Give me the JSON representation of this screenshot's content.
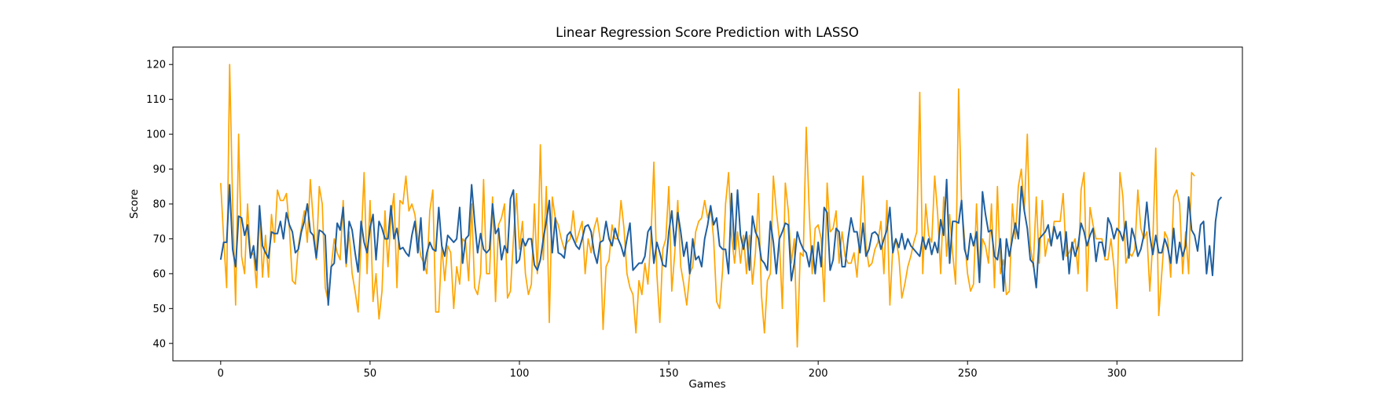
{
  "chart_data": {
    "type": "line",
    "title": "Linear Regression Score Prediction with LASSO",
    "xlabel": "Games",
    "ylabel": "Score",
    "xlim": [
      -16,
      342
    ],
    "ylim": [
      35,
      125
    ],
    "xticks": [
      0,
      50,
      100,
      150,
      200,
      250,
      300
    ],
    "yticks": [
      40,
      50,
      60,
      70,
      80,
      90,
      100,
      110,
      120
    ],
    "grid": false,
    "legend": "none",
    "series": [
      {
        "color": "#ffa500",
        "values": [
          86,
          70,
          56,
          120,
          80,
          51,
          100,
          65,
          60,
          80,
          65,
          66,
          56,
          78,
          59,
          71,
          59,
          77,
          69,
          84,
          81,
          81,
          83,
          73,
          58,
          57,
          68,
          73,
          78,
          69,
          87,
          75,
          64,
          85,
          80,
          56,
          52,
          62,
          70,
          66,
          64,
          81,
          62,
          72,
          60,
          55,
          49,
          69,
          89,
          60,
          81,
          52,
          60,
          47,
          55,
          78,
          62,
          76,
          83,
          56,
          81,
          80,
          88,
          78,
          80,
          77,
          70,
          65,
          63,
          60,
          78,
          84,
          49,
          49,
          68,
          58,
          68,
          66,
          50,
          62,
          57,
          70,
          69,
          58,
          80,
          56,
          54,
          60,
          87,
          60,
          60,
          82,
          52,
          74,
          76,
          80,
          53,
          55,
          70,
          83,
          67,
          75,
          60,
          54,
          57,
          80,
          60,
          97,
          64,
          85,
          46,
          82,
          76,
          74,
          70,
          67,
          69,
          70,
          78,
          69,
          72,
          75,
          60,
          70,
          66,
          73,
          76,
          70,
          44,
          62,
          64,
          74,
          70,
          70,
          81,
          73,
          60,
          56,
          54,
          43,
          58,
          54,
          63,
          57,
          70,
          92,
          60,
          46,
          67,
          70,
          85,
          55,
          66,
          81,
          62,
          57,
          51,
          60,
          62,
          72,
          75,
          76,
          81,
          76,
          79,
          70,
          52,
          50,
          61,
          80,
          89,
          71,
          63,
          72,
          63,
          71,
          60,
          71,
          57,
          66,
          83,
          54,
          43,
          58,
          60,
          88,
          78,
          70,
          50,
          86,
          78,
          63,
          70,
          39,
          66,
          65,
          102,
          78,
          60,
          73,
          74,
          70,
          52,
          86,
          72,
          73,
          78,
          63,
          72,
          65,
          63,
          63,
          66,
          59,
          72,
          88,
          68,
          62,
          63,
          67,
          69,
          75,
          60,
          81,
          51,
          68,
          70,
          65,
          53,
          57,
          62,
          65,
          69,
          72,
          112,
          60,
          80,
          71,
          69,
          88,
          77,
          60,
          82,
          65,
          77,
          66,
          57,
          113,
          80,
          70,
          60,
          55,
          57,
          80,
          58,
          70,
          68,
          63,
          80,
          56,
          85,
          60,
          64,
          54,
          55,
          80,
          70,
          85,
          90,
          78,
          100,
          68,
          62,
          82,
          63,
          81,
          65,
          70,
          68,
          75,
          75,
          75,
          83,
          65,
          66,
          68,
          70,
          60,
          84,
          89,
          55,
          79,
          74,
          70,
          70,
          70,
          64,
          64,
          70,
          62,
          50,
          89,
          82,
          63,
          66,
          65,
          67,
          84,
          73,
          70,
          72,
          55,
          69,
          96,
          48,
          60,
          72,
          70,
          59,
          82,
          84,
          80,
          60,
          72,
          60,
          89,
          88
        ]
      },
      {
        "color": "#1f5fa0",
        "values": [
          64,
          69,
          69,
          85.5,
          67,
          62,
          76.5,
          76,
          71,
          74,
          64.5,
          68,
          61,
          79.5,
          68,
          66,
          64.5,
          72,
          71.5,
          71.5,
          75,
          70,
          77.5,
          74,
          72,
          66,
          67,
          72,
          75,
          80,
          72,
          71,
          64.5,
          72.5,
          72,
          71,
          51,
          62,
          63,
          74.5,
          72.5,
          79,
          63,
          75,
          72.5,
          66,
          60.5,
          75,
          69,
          66,
          73,
          77,
          64,
          75,
          73,
          70,
          70,
          79.5,
          70,
          73,
          67,
          67.5,
          66,
          65,
          71,
          75,
          66,
          76,
          61,
          66,
          69,
          67,
          66.5,
          79,
          68,
          65,
          71,
          70,
          69,
          70,
          79,
          63,
          70,
          71,
          85.5,
          75,
          66,
          71.5,
          67,
          66,
          67,
          80,
          71.5,
          73,
          64,
          68,
          66,
          81.5,
          84,
          63,
          64,
          70,
          68,
          70,
          70,
          62.5,
          61,
          64,
          70,
          75,
          81,
          66,
          76,
          66,
          65.5,
          64.5,
          71,
          72,
          70,
          68,
          67,
          70,
          73.5,
          74,
          72,
          66,
          63,
          69,
          69.5,
          75,
          70,
          68,
          73,
          70,
          68,
          65,
          70,
          74.5,
          61,
          62,
          63,
          63,
          65,
          72,
          73.5,
          63,
          69,
          66,
          62.5,
          62,
          72,
          78,
          68,
          77.5,
          72,
          65,
          69,
          60,
          70,
          64,
          65,
          62,
          70,
          74,
          79.5,
          74,
          76,
          68,
          67,
          67,
          60,
          83,
          67,
          84,
          71,
          67,
          72,
          61,
          76.5,
          72,
          70,
          64,
          63,
          61,
          75,
          69,
          60,
          70,
          72,
          74.5,
          74,
          58,
          63,
          72,
          69,
          67,
          66,
          62,
          68,
          60,
          69,
          62,
          79,
          77.5,
          61,
          64,
          73,
          72,
          62,
          62,
          70,
          76,
          72,
          72,
          66,
          74.5,
          65,
          67,
          71.5,
          72,
          71,
          67,
          70,
          72.5,
          79,
          66,
          70,
          67.5,
          71.5,
          67,
          70,
          68,
          67,
          66,
          65,
          70.5,
          67,
          70,
          65.5,
          69,
          66,
          75.5,
          71,
          87,
          63,
          75,
          75,
          74.5,
          81,
          67,
          64,
          71.5,
          68,
          72,
          57.5,
          83.5,
          77,
          72,
          72.5,
          65,
          64,
          70,
          55,
          70,
          65,
          70,
          74.5,
          70,
          85,
          78,
          73,
          64,
          63,
          56,
          70,
          71,
          72,
          74,
          68,
          73.5,
          70,
          72,
          64,
          72,
          60,
          69,
          65,
          68,
          74.5,
          72,
          68,
          71,
          73,
          63.5,
          69,
          69,
          65,
          76,
          74,
          70,
          73,
          72,
          69.5,
          75,
          64.5,
          73,
          70,
          65,
          67,
          71,
          80.5,
          71,
          65.5,
          71,
          66,
          66,
          70,
          67.5,
          63,
          73,
          63,
          69,
          65,
          68,
          82,
          72.5,
          71,
          66.5,
          74,
          75,
          60,
          68,
          59.5,
          75,
          81,
          82
        ]
      }
    ]
  }
}
